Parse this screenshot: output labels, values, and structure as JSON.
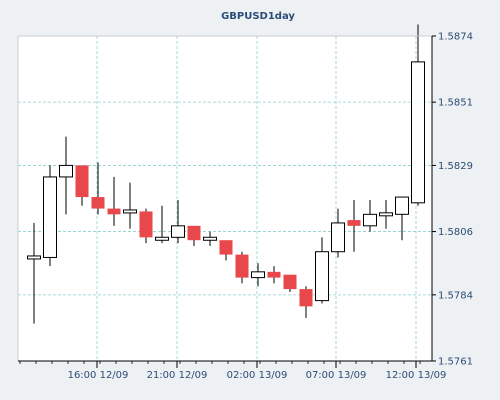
{
  "chart_data": {
    "type": "candlestick",
    "title": "GBPUSD1day",
    "x_ticks": [
      "16:00 12/09",
      "21:00 12/09",
      "02:00 13/09",
      "07:00 13/09",
      "12:00 13/09"
    ],
    "y_ticks": [
      "1.5874",
      "1.5851",
      "1.5829",
      "1.5806",
      "1.5784",
      "1.5761"
    ],
    "ylim": [
      1.5761,
      1.5874
    ],
    "grid": true,
    "colors": {
      "up": "#ffffff",
      "down": "#e8474b",
      "wick": "#000000",
      "grid": "#8ccfcf",
      "plot_bg": "#ffffff",
      "page_bg": "#eef1f4",
      "text": "#2b4c74"
    },
    "candles": [
      {
        "open": 1.5797,
        "high": 1.5809,
        "low": 1.5774,
        "close": 1.5797
      },
      {
        "open": 1.5797,
        "high": 1.5829,
        "low": 1.5794,
        "close": 1.5825
      },
      {
        "open": 1.5825,
        "high": 1.5839,
        "low": 1.5812,
        "close": 1.5829
      },
      {
        "open": 1.5829,
        "high": 1.5829,
        "low": 1.5815,
        "close": 1.5818
      },
      {
        "open": 1.5818,
        "high": 1.583,
        "low": 1.5812,
        "close": 1.5814
      },
      {
        "open": 1.5814,
        "high": 1.5825,
        "low": 1.5808,
        "close": 1.5812
      },
      {
        "open": 1.5813,
        "high": 1.5823,
        "low": 1.5807,
        "close": 1.5813
      },
      {
        "open": 1.5813,
        "high": 1.5814,
        "low": 1.5802,
        "close": 1.5804
      },
      {
        "open": 1.5803,
        "high": 1.5815,
        "low": 1.5802,
        "close": 1.5804
      },
      {
        "open": 1.5804,
        "high": 1.5817,
        "low": 1.5802,
        "close": 1.5808
      },
      {
        "open": 1.5808,
        "high": 1.5808,
        "low": 1.5801,
        "close": 1.5803
      },
      {
        "open": 1.5803,
        "high": 1.5806,
        "low": 1.5801,
        "close": 1.5804
      },
      {
        "open": 1.5803,
        "high": 1.5803,
        "low": 1.5796,
        "close": 1.5798
      },
      {
        "open": 1.5798,
        "high": 1.5799,
        "low": 1.5788,
        "close": 1.579
      },
      {
        "open": 1.579,
        "high": 1.5795,
        "low": 1.5787,
        "close": 1.5792
      },
      {
        "open": 1.5792,
        "high": 1.5794,
        "low": 1.5788,
        "close": 1.579
      },
      {
        "open": 1.5791,
        "high": 1.5791,
        "low": 1.5785,
        "close": 1.5786
      },
      {
        "open": 1.5786,
        "high": 1.5787,
        "low": 1.5776,
        "close": 1.578
      },
      {
        "open": 1.5782,
        "high": 1.5804,
        "low": 1.5781,
        "close": 1.5799
      },
      {
        "open": 1.5799,
        "high": 1.5814,
        "low": 1.5797,
        "close": 1.5809
      },
      {
        "open": 1.581,
        "high": 1.5817,
        "low": 1.5799,
        "close": 1.5808
      },
      {
        "open": 1.5808,
        "high": 1.5817,
        "low": 1.5806,
        "close": 1.5812
      },
      {
        "open": 1.5812,
        "high": 1.5817,
        "low": 1.5807,
        "close": 1.5812
      },
      {
        "open": 1.5812,
        "high": 1.5818,
        "low": 1.5803,
        "close": 1.5818
      },
      {
        "open": 1.5816,
        "high": 1.5878,
        "low": 1.5815,
        "close": 1.5865
      }
    ]
  }
}
